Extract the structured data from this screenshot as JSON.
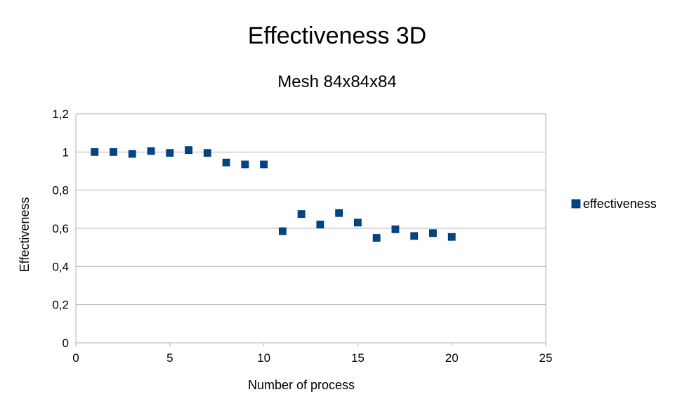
{
  "chart_data": {
    "type": "scatter",
    "title": "Effectiveness 3D",
    "subtitle": "Mesh 84x84x84",
    "xlabel": "Number of process",
    "ylabel": "Effectiveness",
    "xlim": [
      0,
      25
    ],
    "ylim": [
      0,
      1.2
    ],
    "x_ticks": [
      0,
      5,
      10,
      15,
      20,
      25
    ],
    "x_tick_labels": [
      "0",
      "5",
      "10",
      "15",
      "20",
      "25"
    ],
    "y_ticks": [
      0,
      0.2,
      0.4,
      0.6,
      0.8,
      1,
      1.2
    ],
    "y_tick_labels": [
      "0",
      "0,2",
      "0,4",
      "0,6",
      "0,8",
      "1",
      "1,2"
    ],
    "grid": "horizontal",
    "legend_position": "right",
    "series": [
      {
        "name": "effectiveness",
        "color": "#004586",
        "marker": "square",
        "x": [
          1,
          2,
          3,
          4,
          5,
          6,
          7,
          8,
          9,
          10,
          11,
          12,
          13,
          14,
          15,
          16,
          17,
          18,
          19,
          20
        ],
        "y": [
          1.0,
          1.0,
          0.99,
          1.005,
          0.995,
          1.01,
          0.995,
          0.945,
          0.935,
          0.935,
          0.585,
          0.675,
          0.62,
          0.68,
          0.63,
          0.55,
          0.595,
          0.56,
          0.575,
          0.555
        ]
      }
    ]
  }
}
